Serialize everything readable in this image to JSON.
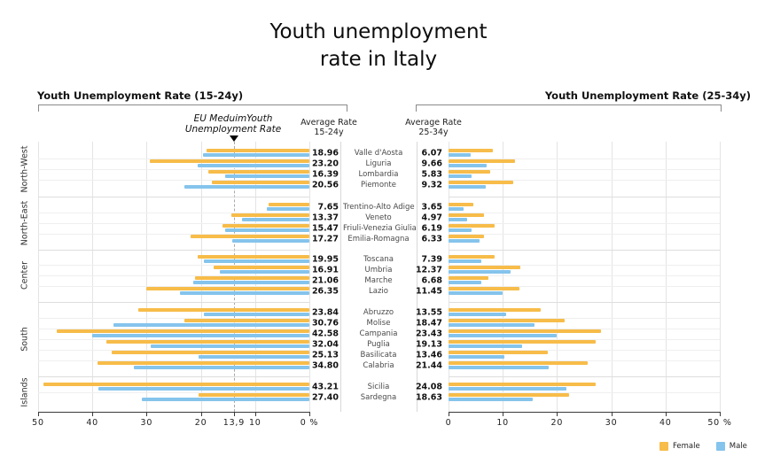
{
  "title": {
    "line1": "Youth unemployment",
    "line2": "rate in Italy"
  },
  "panels": {
    "left": {
      "header": "Youth Unemployment Rate (15-24y)",
      "avg_header_line1": "Average Rate",
      "avg_header_line2": "15-24y"
    },
    "right": {
      "header": "Youth Unemployment Rate (25-34y)",
      "avg_header_line1": "Average Rate",
      "avg_header_line2": "25-34y"
    }
  },
  "annotation": {
    "eu_line1": "EU MeduimYouth",
    "eu_line2": "Unemployment Rate",
    "eu_value": 13.9,
    "eu_axis_label": "13,9"
  },
  "legend": [
    {
      "label": "Female",
      "color": "#F7BC49"
    },
    {
      "label": "Male",
      "color": "#85C4EC"
    }
  ],
  "chart_data": {
    "type": "bar",
    "unit": "%",
    "series_names": [
      "Female",
      "Male"
    ],
    "panels": [
      {
        "id": "15-24y",
        "title": "Youth Unemployment Rate (15-24y)",
        "axis_range": [
          0,
          50
        ],
        "axis_reversed": true,
        "ticks": [
          {
            "v": 50,
            "label": "50"
          },
          {
            "v": 40,
            "label": "40"
          },
          {
            "v": 30,
            "label": "30"
          },
          {
            "v": 20,
            "label": "20"
          },
          {
            "v": 13.9,
            "label": "13,9"
          },
          {
            "v": 10,
            "label": "10"
          },
          {
            "v": 0,
            "label": "0 %"
          }
        ],
        "eu_reference_line": 13.9
      },
      {
        "id": "25-34y",
        "title": "Youth Unemployment Rate (25-34y)",
        "axis_range": [
          0,
          50
        ],
        "axis_reversed": false,
        "ticks": [
          {
            "v": 0,
            "label": "0"
          },
          {
            "v": 10,
            "label": "10"
          },
          {
            "v": 20,
            "label": "20"
          },
          {
            "v": 30,
            "label": "30"
          },
          {
            "v": 40,
            "label": "40"
          },
          {
            "v": 50,
            "label": "50 %"
          }
        ]
      }
    ],
    "groups": [
      {
        "name": "North-West",
        "regions": [
          {
            "name": "Valle d'Aosta",
            "avg_15_24": "18.96",
            "female_15_24": 19.0,
            "male_15_24": 19.6,
            "avg_25_34": "6.07",
            "female_25_34": 8.1,
            "male_25_34": 4.1
          },
          {
            "name": "Liguria",
            "avg_15_24": "23.20",
            "female_15_24": 29.4,
            "male_15_24": 20.6,
            "avg_25_34": "9.66",
            "female_25_34": 12.3,
            "male_25_34": 7.1
          },
          {
            "name": "Lombardia",
            "avg_15_24": "16.39",
            "female_15_24": 18.6,
            "male_15_24": 15.5,
            "avg_25_34": "5.83",
            "female_25_34": 7.6,
            "male_25_34": 4.3
          },
          {
            "name": "Piemonte",
            "avg_15_24": "20.56",
            "female_15_24": 18.0,
            "male_15_24": 23.0,
            "avg_25_34": "9.32",
            "female_25_34": 12.0,
            "male_25_34": 6.9
          }
        ]
      },
      {
        "name": "North-East",
        "regions": [
          {
            "name": "Trentino-Alto Adige",
            "avg_15_24": "7.65",
            "female_15_24": 7.5,
            "male_15_24": 7.8,
            "avg_25_34": "3.65",
            "female_25_34": 4.6,
            "male_25_34": 2.7
          },
          {
            "name": "Veneto",
            "avg_15_24": "13.37",
            "female_15_24": 14.4,
            "male_15_24": 12.4,
            "avg_25_34": "4.97",
            "female_25_34": 6.5,
            "male_25_34": 3.5
          },
          {
            "name": "Friuli-Venezia Giulia",
            "avg_15_24": "15.47",
            "female_15_24": 16.0,
            "male_15_24": 15.5,
            "avg_25_34": "6.19",
            "female_25_34": 8.5,
            "male_25_34": 4.2
          },
          {
            "name": "Emilia-Romagna",
            "avg_15_24": "17.27",
            "female_15_24": 21.9,
            "male_15_24": 14.2,
            "avg_25_34": "6.33",
            "female_25_34": 6.6,
            "male_25_34": 5.8
          }
        ]
      },
      {
        "name": "Center",
        "regions": [
          {
            "name": "Toscana",
            "avg_15_24": "19.95",
            "female_15_24": 20.6,
            "male_15_24": 19.4,
            "avg_25_34": "7.39",
            "female_25_34": 8.5,
            "male_25_34": 6.1
          },
          {
            "name": "Umbria",
            "avg_15_24": "16.91",
            "female_15_24": 17.6,
            "male_15_24": 16.5,
            "avg_25_34": "12.37",
            "female_25_34": 13.2,
            "male_25_34": 11.4
          },
          {
            "name": "Marche",
            "avg_15_24": "21.06",
            "female_15_24": 21.1,
            "male_15_24": 21.4,
            "avg_25_34": "6.68",
            "female_25_34": 7.4,
            "male_25_34": 6.0
          },
          {
            "name": "Lazio",
            "avg_15_24": "26.35",
            "female_15_24": 30.1,
            "male_15_24": 23.9,
            "avg_25_34": "11.45",
            "female_25_34": 13.0,
            "male_25_34": 9.9
          }
        ]
      },
      {
        "name": "South",
        "regions": [
          {
            "name": "Abruzzo",
            "avg_15_24": "23.84",
            "female_15_24": 31.5,
            "male_15_24": 19.5,
            "avg_25_34": "13.55",
            "female_25_34": 17.0,
            "male_25_34": 10.7
          },
          {
            "name": "Molise",
            "avg_15_24": "30.76",
            "female_15_24": 23.0,
            "male_15_24": 36.1,
            "avg_25_34": "18.47",
            "female_25_34": 21.4,
            "male_25_34": 15.8
          },
          {
            "name": "Campania",
            "avg_15_24": "42.58",
            "female_15_24": 46.6,
            "male_15_24": 40.0,
            "avg_25_34": "23.43",
            "female_25_34": 28.1,
            "male_25_34": 20.0
          },
          {
            "name": "Puglia",
            "avg_15_24": "32.04",
            "female_15_24": 37.4,
            "male_15_24": 29.2,
            "avg_25_34": "19.13",
            "female_25_34": 27.1,
            "male_25_34": 13.5
          },
          {
            "name": "Basilicata",
            "avg_15_24": "25.13",
            "female_15_24": 36.4,
            "male_15_24": 20.4,
            "avg_25_34": "13.46",
            "female_25_34": 18.3,
            "male_25_34": 10.3
          },
          {
            "name": "Calabria",
            "avg_15_24": "34.80",
            "female_15_24": 39.0,
            "male_15_24": 32.3,
            "avg_25_34": "21.44",
            "female_25_34": 25.7,
            "male_25_34": 18.5
          }
        ]
      },
      {
        "name": "Islands",
        "regions": [
          {
            "name": "Sicilia",
            "avg_15_24": "43.21",
            "female_15_24": 49.0,
            "male_15_24": 38.9,
            "avg_25_34": "24.08",
            "female_25_34": 27.2,
            "male_25_34": 21.8
          },
          {
            "name": "Sardegna",
            "avg_15_24": "27.40",
            "female_15_24": 20.4,
            "male_15_24": 30.9,
            "avg_25_34": "18.63",
            "female_25_34": 22.2,
            "male_25_34": 15.6
          }
        ]
      }
    ]
  }
}
